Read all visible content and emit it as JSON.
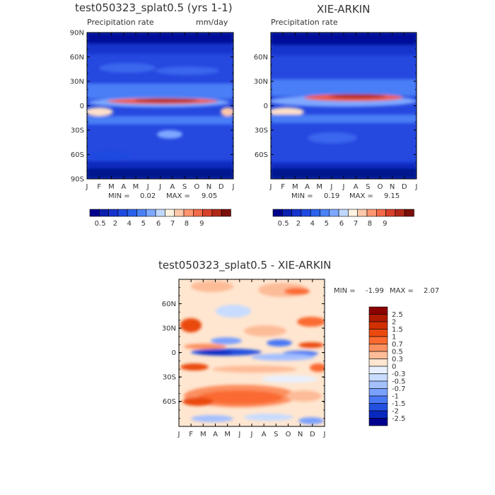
{
  "chart_data": [
    {
      "type": "heatmap",
      "title": "test050323_splat0.5 (yrs 1-1)",
      "subtitle": "Precipitation rate",
      "units": "mm/day",
      "x_ticks": [
        "J",
        "F",
        "M",
        "A",
        "M",
        "J",
        "J",
        "A",
        "S",
        "O",
        "N",
        "D",
        "J"
      ],
      "y_ticks": [
        "90N",
        "60N",
        "30N",
        "0",
        "30S",
        "60S",
        "90S"
      ],
      "min_label": "MIN =",
      "min_value": "0.02",
      "max_label": "MAX =",
      "max_value": "9.05",
      "colorbar_levels": [
        "0.5",
        "2",
        "4",
        "5",
        "6",
        "7",
        "8",
        "9"
      ]
    },
    {
      "type": "heatmap",
      "title": "XIE-ARKIN",
      "subtitle": "Precipitation rate",
      "x_ticks": [
        "J",
        "F",
        "M",
        "A",
        "M",
        "J",
        "J",
        "A",
        "S",
        "O",
        "N",
        "D",
        "J"
      ],
      "y_ticks": [
        "60N",
        "30N",
        "0",
        "30S",
        "60S"
      ],
      "min_label": "MIN =",
      "min_value": "0.19",
      "max_label": "MAX =",
      "max_value": "9.15",
      "colorbar_levels": [
        "0.5",
        "2",
        "4",
        "5",
        "6",
        "7",
        "8",
        "9"
      ]
    },
    {
      "type": "heatmap",
      "title": "test050323_splat0.5 - XIE-ARKIN",
      "x_ticks": [
        "J",
        "F",
        "M",
        "A",
        "M",
        "J",
        "J",
        "A",
        "S",
        "O",
        "N",
        "D",
        "J"
      ],
      "y_ticks": [
        "60N",
        "30N",
        "0",
        "30S",
        "60S"
      ],
      "min_label": "MIN =",
      "min_value": "-1.99",
      "max_label": "MAX =",
      "max_value": "2.07",
      "colorbar_levels": [
        "2.5",
        "2",
        "1.5",
        "1",
        "0.7",
        "0.5",
        "0.3",
        "0",
        "-0.3",
        "-0.5",
        "-0.7",
        "-1",
        "-1.5",
        "-2",
        "-2.5"
      ]
    }
  ],
  "colors": {
    "seq": [
      "#00008b",
      "#0a1fb0",
      "#1634cc",
      "#1e4ae0",
      "#2a62ec",
      "#4a82f6",
      "#7ea8ff",
      "#c0d8ff",
      "#fff2e0",
      "#ffc8a8",
      "#ff9670",
      "#f26a48",
      "#d8402a",
      "#b02818",
      "#7a0e08"
    ],
    "div": [
      "#8b0000",
      "#b01a00",
      "#d03000",
      "#ea4a10",
      "#fa6a30",
      "#fc9060",
      "#fdbc98",
      "#ffe6d0",
      "#e8f0ff",
      "#c8dcff",
      "#a4c0ff",
      "#7aa0ff",
      "#4a78f5",
      "#2250e0",
      "#0828c0",
      "#000090"
    ]
  }
}
